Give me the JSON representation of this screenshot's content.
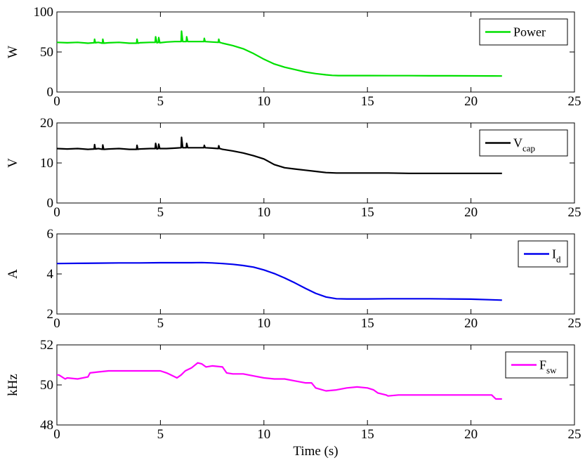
{
  "chart_data": [
    {
      "type": "line",
      "ylabel": "W",
      "xlabel": "",
      "xlim": [
        0,
        25
      ],
      "ylim": [
        0,
        100
      ],
      "xticks": [
        0,
        5,
        10,
        15,
        20,
        25
      ],
      "yticks": [
        0,
        50,
        100
      ],
      "legend": {
        "placement": "top-right",
        "label": "Power",
        "sub": ""
      },
      "series": [
        {
          "name": "Power",
          "color": "#00e000",
          "x": [
            0,
            0.5,
            1.0,
            1.5,
            1.8,
            1.82,
            1.86,
            2.0,
            2.2,
            2.22,
            2.26,
            2.5,
            3.0,
            3.5,
            3.85,
            3.87,
            3.91,
            4.0,
            4.5,
            4.75,
            4.77,
            4.83,
            4.9,
            4.92,
            4.97,
            5.3,
            5.7,
            6.0,
            6.02,
            6.08,
            6.25,
            6.27,
            6.32,
            6.5,
            7.0,
            7.1,
            7.12,
            7.16,
            7.5,
            7.8,
            7.82,
            7.86,
            8.0,
            8.5,
            9.0,
            9.5,
            10.0,
            10.5,
            11.0,
            11.5,
            12.0,
            12.5,
            13.0,
            13.3,
            13.6,
            14.0,
            15.0,
            16.0,
            17.0,
            18.0,
            19.0,
            20.0,
            21.0,
            21.5
          ],
          "y": [
            62,
            61.5,
            62,
            61,
            61.5,
            66,
            61.5,
            62,
            61,
            66,
            61,
            61.5,
            62,
            61,
            61,
            66,
            61,
            61.5,
            62,
            62,
            69,
            61.5,
            62,
            68,
            61.5,
            62.5,
            63,
            63,
            76,
            63,
            63,
            69,
            63,
            63,
            63,
            63,
            67,
            63,
            62.5,
            62,
            66,
            62,
            61,
            58,
            54,
            48,
            41,
            35,
            31,
            28,
            25,
            23,
            21.5,
            20.8,
            20.5,
            20.5,
            20.5,
            20.4,
            20.4,
            20.3,
            20.3,
            20.2,
            20.1,
            20
          ]
        }
      ]
    },
    {
      "type": "line",
      "ylabel": "V",
      "xlabel": "",
      "xlim": [
        0,
        25
      ],
      "ylim": [
        0,
        20
      ],
      "xticks": [
        0,
        5,
        10,
        15,
        20,
        25
      ],
      "yticks": [
        0,
        10,
        20
      ],
      "legend": {
        "placement": "top-right",
        "label": "V",
        "sub": "cap"
      },
      "series": [
        {
          "name": "V_cap",
          "color": "#000000",
          "x": [
            0,
            0.5,
            1.0,
            1.5,
            1.8,
            1.82,
            1.86,
            2.0,
            2.2,
            2.22,
            2.26,
            2.5,
            3.0,
            3.5,
            3.85,
            3.87,
            3.91,
            4.0,
            4.5,
            4.75,
            4.77,
            4.83,
            4.9,
            4.92,
            4.97,
            5.3,
            5.7,
            6.0,
            6.02,
            6.08,
            6.25,
            6.27,
            6.32,
            6.5,
            7.0,
            7.1,
            7.12,
            7.16,
            7.5,
            7.8,
            7.82,
            7.86,
            8.0,
            8.5,
            9.0,
            9.5,
            10.0,
            10.5,
            11.0,
            11.5,
            12.0,
            12.5,
            13.0,
            13.5,
            14.0,
            15.0,
            16.0,
            17.0,
            18.0,
            19.0,
            20.0,
            21.0,
            21.5
          ],
          "y": [
            13.6,
            13.5,
            13.6,
            13.4,
            13.5,
            14.6,
            13.5,
            13.6,
            13.4,
            14.5,
            13.4,
            13.5,
            13.6,
            13.4,
            13.4,
            14.4,
            13.4,
            13.5,
            13.6,
            13.6,
            14.9,
            13.5,
            13.6,
            14.7,
            13.6,
            13.6,
            13.7,
            13.8,
            16.4,
            13.8,
            13.8,
            14.9,
            13.8,
            13.8,
            13.8,
            13.8,
            14.4,
            13.8,
            13.7,
            13.6,
            14.3,
            13.6,
            13.4,
            13.0,
            12.5,
            11.8,
            11.0,
            9.6,
            8.8,
            8.5,
            8.2,
            7.9,
            7.6,
            7.5,
            7.5,
            7.5,
            7.5,
            7.4,
            7.4,
            7.4,
            7.4,
            7.4,
            7.4
          ]
        }
      ]
    },
    {
      "type": "line",
      "ylabel": "A",
      "xlabel": "",
      "xlim": [
        0,
        25
      ],
      "ylim": [
        2,
        6
      ],
      "xticks": [
        0,
        5,
        10,
        15,
        20,
        25
      ],
      "yticks": [
        2,
        4,
        6
      ],
      "legend": {
        "placement": "top-right",
        "label": "I",
        "sub": "d"
      },
      "series": [
        {
          "name": "I_d",
          "color": "#0000ee",
          "x": [
            0,
            1,
            2,
            3,
            4,
            5,
            6,
            6.5,
            7,
            7.5,
            8,
            8.5,
            9,
            9.5,
            10,
            10.5,
            11,
            11.5,
            12,
            12.5,
            13,
            13.5,
            14,
            15,
            16,
            17,
            18,
            19,
            20,
            21,
            21.5
          ],
          "y": [
            4.52,
            4.53,
            4.54,
            4.55,
            4.55,
            4.56,
            4.56,
            4.56,
            4.57,
            4.55,
            4.52,
            4.48,
            4.42,
            4.34,
            4.2,
            4.02,
            3.8,
            3.55,
            3.28,
            3.03,
            2.85,
            2.76,
            2.75,
            2.75,
            2.76,
            2.76,
            2.76,
            2.75,
            2.74,
            2.71,
            2.69
          ]
        }
      ]
    },
    {
      "type": "line",
      "ylabel": "kHz",
      "xlabel": "Time (s)",
      "xlim": [
        0,
        25
      ],
      "ylim": [
        48,
        52
      ],
      "xticks": [
        0,
        5,
        10,
        15,
        20,
        25
      ],
      "yticks": [
        48,
        50,
        52
      ],
      "legend": {
        "placement": "top-right",
        "label": "F",
        "sub": "sw"
      },
      "series": [
        {
          "name": "F_sw",
          "color": "#ff00ff",
          "x": [
            0,
            0.1,
            0.4,
            0.5,
            1.0,
            1.5,
            1.6,
            2.0,
            2.5,
            3.0,
            4.0,
            5.0,
            5.3,
            5.4,
            5.8,
            6.0,
            6.2,
            6.5,
            6.8,
            7.0,
            7.2,
            7.5,
            8.0,
            8.2,
            8.5,
            9.0,
            9.5,
            10.0,
            10.5,
            11.0,
            11.5,
            12.0,
            12.3,
            12.5,
            13.0,
            13.5,
            14.0,
            14.5,
            15.0,
            15.3,
            15.5,
            15.9,
            16.0,
            16.5,
            17.0,
            18.0,
            19.0,
            20.0,
            21.0,
            21.2,
            21.5
          ],
          "y": [
            50.5,
            50.5,
            50.3,
            50.35,
            50.3,
            50.4,
            50.6,
            50.65,
            50.7,
            50.7,
            50.7,
            50.7,
            50.6,
            50.55,
            50.35,
            50.5,
            50.7,
            50.85,
            51.1,
            51.05,
            50.9,
            50.95,
            50.9,
            50.6,
            50.55,
            50.55,
            50.45,
            50.35,
            50.3,
            50.3,
            50.2,
            50.1,
            50.1,
            49.85,
            49.7,
            49.75,
            49.85,
            49.9,
            49.85,
            49.75,
            49.6,
            49.5,
            49.45,
            49.5,
            49.5,
            49.5,
            49.5,
            49.5,
            49.5,
            49.3,
            49.3
          ]
        }
      ]
    }
  ]
}
